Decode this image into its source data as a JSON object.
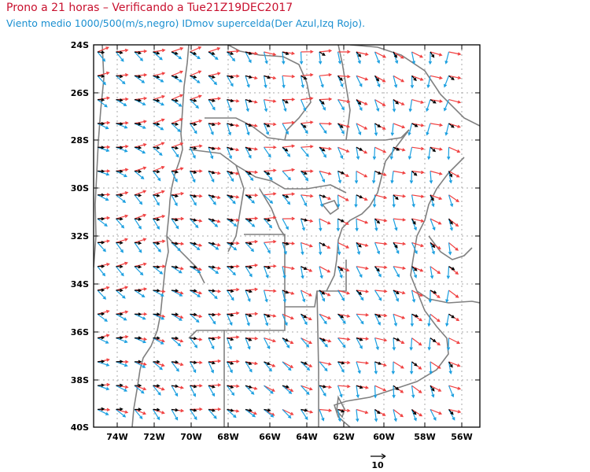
{
  "title": "Prono a 21 horas – Verificando a Tue21Z19DEC2017",
  "subtitle": "Viento medio 1000/500(m/s,negro) IDmov supercelda(Der Azul,Izq Rojo).",
  "lat_labels": [
    "24S",
    "26S",
    "28S",
    "30S",
    "32S",
    "34S",
    "36S",
    "38S",
    "40S"
  ],
  "lon_labels": [
    "74W",
    "72W",
    "70W",
    "68W",
    "66W",
    "64W",
    "62W",
    "60W",
    "58W",
    "56W"
  ],
  "reference_vector": {
    "label": "10",
    "unit": "m/s"
  },
  "colors": {
    "title": "#c8102e",
    "subtitle": "#1a8fd0",
    "mean_wind": "#000000",
    "right_mover": "#1a9fe0",
    "left_mover": "#f04040",
    "borders": "#808080",
    "grid": "#aaaaaa"
  }
}
